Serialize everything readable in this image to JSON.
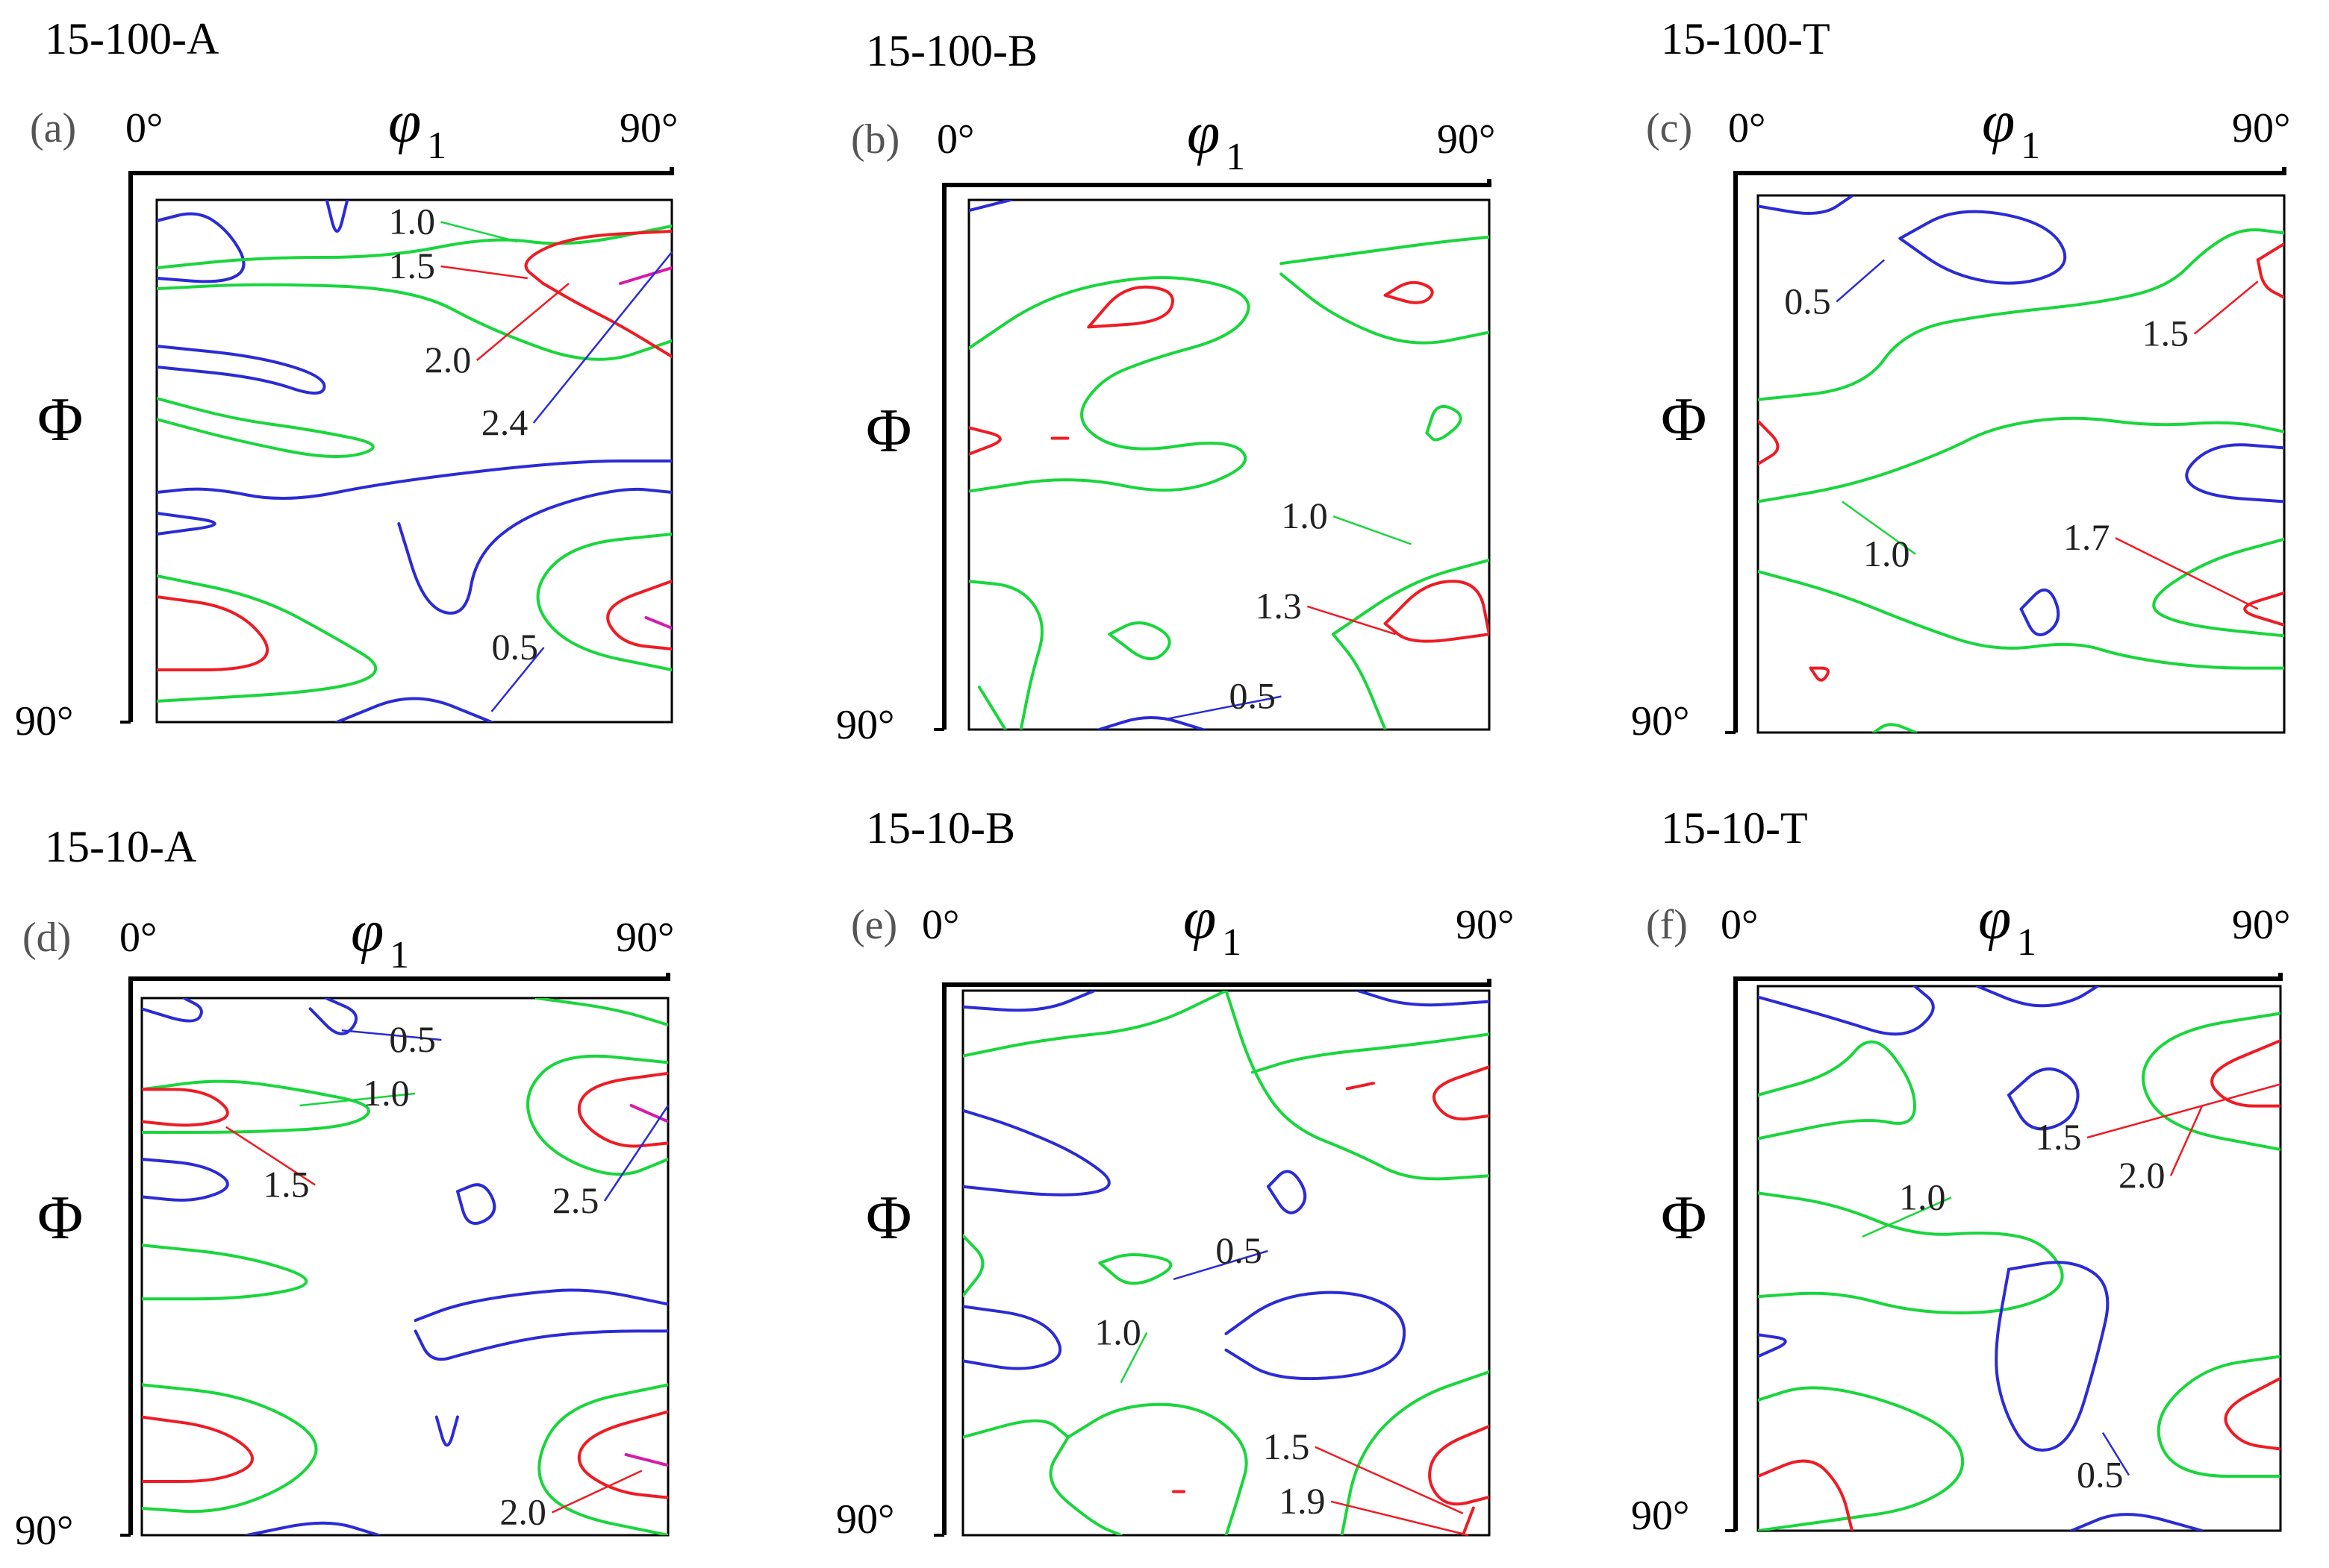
{
  "figure": {
    "palette": {
      "blue": "#2b2bd6",
      "green": "#19d63c",
      "red": "#ee1c24",
      "magenta": "#d61ba8",
      "axis": "#000000"
    },
    "axis_labels": {
      "phi1": "φ",
      "phi1_sub": "1",
      "Phi": "Φ",
      "top_left": "0°",
      "top_right": "90°",
      "bottom_left": "90°"
    },
    "panels": [
      {
        "id": "a",
        "title": "15-100-A",
        "letter": "(a)",
        "annotations": [
          {
            "text": "1.0",
            "color": "green"
          },
          {
            "text": "1.5",
            "color": "red"
          },
          {
            "text": "2.0",
            "color": "red"
          },
          {
            "text": "2.4",
            "color": "blue"
          },
          {
            "text": "0.5",
            "color": "blue"
          }
        ]
      },
      {
        "id": "b",
        "title": "15-100-B",
        "letter": "(b)",
        "annotations": [
          {
            "text": "1.0",
            "color": "green"
          },
          {
            "text": "1.3",
            "color": "red"
          },
          {
            "text": "0.5",
            "color": "blue"
          }
        ]
      },
      {
        "id": "c",
        "title": "15-100-T",
        "letter": "(c)",
        "annotations": [
          {
            "text": "0.5",
            "color": "blue"
          },
          {
            "text": "1.5",
            "color": "red"
          },
          {
            "text": "1.0",
            "color": "green"
          },
          {
            "text": "1.7",
            "color": "red"
          }
        ]
      },
      {
        "id": "d",
        "title": "15-10-A",
        "letter": "(d)",
        "annotations": [
          {
            "text": "0.5",
            "color": "blue"
          },
          {
            "text": "1.0",
            "color": "green"
          },
          {
            "text": "1.5",
            "color": "red"
          },
          {
            "text": "2.5",
            "color": "blue"
          },
          {
            "text": "2.0",
            "color": "red"
          }
        ]
      },
      {
        "id": "e",
        "title": "15-10-B",
        "letter": "(e)",
        "annotations": [
          {
            "text": "0.5",
            "color": "blue"
          },
          {
            "text": "1.0",
            "color": "green"
          },
          {
            "text": "1.5",
            "color": "red"
          },
          {
            "text": "1.9",
            "color": "red"
          }
        ]
      },
      {
        "id": "f",
        "title": "15-10-T",
        "letter": "(f)",
        "annotations": [
          {
            "text": "1.0",
            "color": "green"
          },
          {
            "text": "1.5",
            "color": "red"
          },
          {
            "text": "2.0",
            "color": "red"
          },
          {
            "text": "0.5",
            "color": "blue"
          }
        ]
      }
    ]
  }
}
